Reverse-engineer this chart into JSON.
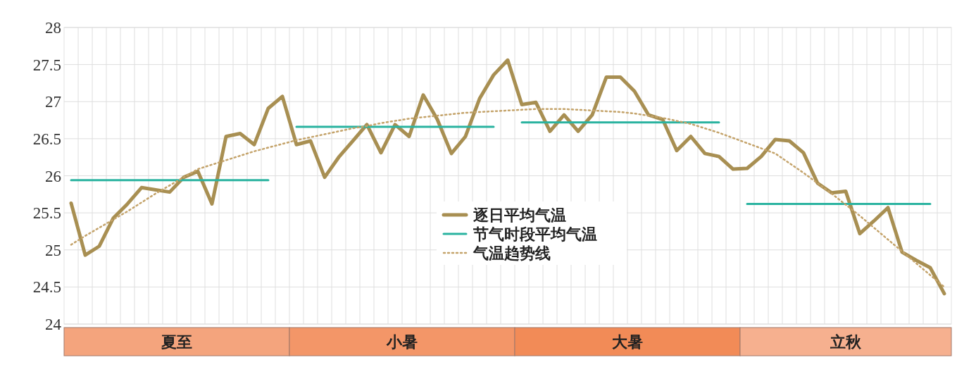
{
  "chart_data": {
    "type": "line",
    "categories": [
      null,
      null,
      null,
      null,
      null,
      null,
      null,
      null,
      null,
      null,
      null,
      null,
      null,
      null,
      null,
      null,
      null,
      null,
      null,
      null,
      null,
      null,
      null,
      null,
      null,
      null,
      null,
      null,
      null,
      null,
      null,
      null,
      null,
      null,
      null,
      null,
      null,
      null,
      null,
      null,
      null,
      null,
      null,
      null,
      null,
      null,
      null,
      null,
      null,
      null,
      null,
      null,
      null,
      null,
      null,
      null,
      null,
      null,
      null,
      null,
      null,
      null,
      null
    ],
    "ylim": [
      24,
      28
    ],
    "yticks": [
      24,
      24.5,
      25,
      25.5,
      26,
      26.5,
      27,
      27.5,
      28
    ],
    "tick_labels": "y",
    "grid": true,
    "legend": "center",
    "series": [
      {
        "name": "逐日平均气温",
        "color": "#a88f52",
        "line_style": "solid",
        "values": [
          25.63,
          24.93,
          25.05,
          25.43,
          25.62,
          25.84,
          25.81,
          25.78,
          25.98,
          26.06,
          25.62,
          26.53,
          26.57,
          26.42,
          26.91,
          27.07,
          26.42,
          26.47,
          25.98,
          26.25,
          26.47,
          26.69,
          26.31,
          26.69,
          26.53,
          27.09,
          26.76,
          26.3,
          26.53,
          27.04,
          27.36,
          27.56,
          26.96,
          26.99,
          26.6,
          26.82,
          26.6,
          26.82,
          27.33,
          27.33,
          27.14,
          26.82,
          26.76,
          26.34,
          26.53,
          26.3,
          26.26,
          26.09,
          26.1,
          26.26,
          26.49,
          26.47,
          26.31,
          25.9,
          25.77,
          25.79,
          25.22,
          25.39,
          25.57,
          24.97,
          24.86,
          24.76,
          24.41
        ]
      },
      {
        "name": "节气时段平均气温",
        "color": "#2ab3a0",
        "line_style": "solid",
        "values": [
          25.94,
          25.94,
          25.94,
          25.94,
          25.94,
          25.94,
          25.94,
          25.94,
          25.94,
          25.94,
          25.94,
          25.94,
          25.94,
          25.94,
          25.94,
          null,
          26.66,
          26.66,
          26.66,
          26.66,
          26.66,
          26.66,
          26.66,
          26.66,
          26.66,
          26.66,
          26.66,
          26.66,
          26.66,
          26.66,
          26.66,
          null,
          26.72,
          26.72,
          26.72,
          26.72,
          26.72,
          26.72,
          26.72,
          26.72,
          26.72,
          26.72,
          26.72,
          26.72,
          26.72,
          26.72,
          26.72,
          null,
          25.62,
          25.62,
          25.62,
          25.62,
          25.62,
          25.62,
          25.62,
          25.62,
          25.62,
          25.62,
          25.62,
          25.62,
          25.62,
          25.62,
          null
        ]
      },
      {
        "name": "气温趋势线",
        "color": "#c4a36a",
        "line_style": "dotted",
        "values": [
          25.07,
          25.19,
          25.3,
          25.41,
          25.52,
          25.64,
          25.76,
          25.87,
          25.98,
          26.09,
          26.15,
          26.21,
          26.27,
          26.33,
          26.38,
          26.43,
          26.48,
          26.52,
          26.56,
          26.6,
          26.64,
          26.67,
          26.71,
          26.74,
          26.77,
          26.79,
          26.81,
          26.83,
          26.85,
          26.86,
          26.87,
          26.88,
          26.89,
          26.9,
          26.9,
          26.9,
          26.89,
          26.88,
          26.87,
          26.86,
          26.84,
          26.81,
          26.78,
          26.74,
          26.7,
          26.64,
          26.58,
          26.51,
          26.44,
          26.37,
          26.3,
          26.17,
          26.04,
          25.9,
          25.76,
          25.61,
          25.46,
          25.3,
          25.14,
          24.98,
          24.82,
          24.66,
          24.5
        ]
      }
    ],
    "annotations": [
      "夏至",
      "小暑",
      "大暑",
      "立秋"
    ]
  }
}
